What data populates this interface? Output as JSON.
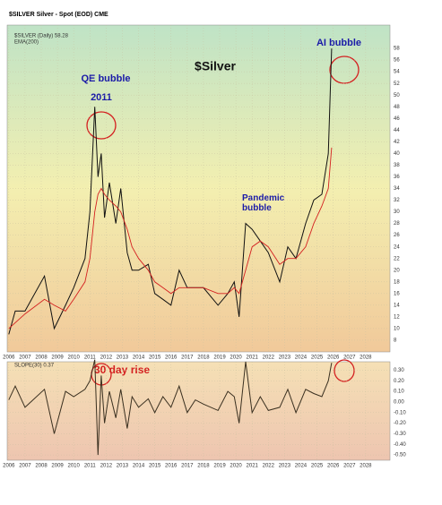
{
  "chart_data": [
    {
      "type": "line",
      "title": "$Silver",
      "subtitle": "$SILVER Silver - Spot (EOD) CME",
      "annotations": [
        "QE bubble",
        "2011",
        "Pandemic bubble",
        "AI bubble"
      ],
      "x": [
        2006.0,
        2006.4,
        2007.0,
        2008.2,
        2008.8,
        2009.5,
        2010.0,
        2010.7,
        2011.0,
        2011.3,
        2011.5,
        2011.7,
        2011.9,
        2012.2,
        2012.6,
        2012.9,
        2013.3,
        2013.6,
        2014.0,
        2014.6,
        2015.0,
        2015.5,
        2016.0,
        2016.5,
        2017.0,
        2017.5,
        2018.0,
        2018.9,
        2019.5,
        2019.9,
        2020.2,
        2020.6,
        2021.0,
        2021.5,
        2022.0,
        2022.7,
        2023.2,
        2023.7,
        2024.3,
        2024.8,
        2025.3,
        2025.7,
        2025.9
      ],
      "series": [
        {
          "name": "$SILVER (Daily) 58.28",
          "color": "#111111",
          "values": [
            9,
            13,
            13,
            19,
            10,
            14,
            17,
            22,
            30,
            48,
            36,
            40,
            29,
            35,
            28,
            34,
            23,
            20,
            20,
            21,
            16,
            15,
            14,
            20,
            17,
            17,
            17,
            14,
            16,
            18,
            12,
            28,
            27,
            25,
            23,
            18,
            24,
            22,
            28,
            32,
            33,
            40,
            58
          ]
        },
        {
          "name": "EMA(200)",
          "color": "#d42020",
          "values": [
            10,
            11,
            12.5,
            15,
            14,
            13,
            15,
            18,
            22,
            30,
            33,
            34,
            33,
            32,
            31,
            30,
            27,
            24,
            22,
            20,
            18,
            17,
            16,
            17,
            17,
            17,
            17,
            16,
            16,
            17,
            16,
            20,
            24,
            25,
            24,
            21,
            22,
            22,
            24,
            28,
            31,
            34,
            41
          ]
        }
      ],
      "xlim": [
        2005.9,
        2029.5
      ],
      "ylim": [
        6,
        62
      ],
      "xticks": [
        2006,
        2007,
        2008,
        2009,
        2010,
        2011,
        2012,
        2013,
        2014,
        2015,
        2016,
        2017,
        2018,
        2019,
        2020,
        2021,
        2022,
        2023,
        2024,
        2025,
        2026,
        2027,
        2028
      ],
      "yticks": [
        8,
        10,
        12,
        14,
        16,
        18,
        20,
        22,
        24,
        26,
        28,
        30,
        32,
        34,
        36,
        38,
        40,
        42,
        44,
        46,
        48,
        50,
        52,
        54,
        56,
        58
      ]
    },
    {
      "type": "line",
      "title": "30 day rise",
      "x": [
        2006.0,
        2006.4,
        2007.0,
        2008.2,
        2008.8,
        2009.5,
        2010.0,
        2010.7,
        2011.0,
        2011.3,
        2011.5,
        2011.7,
        2011.9,
        2012.2,
        2012.6,
        2012.9,
        2013.3,
        2013.6,
        2014.0,
        2014.6,
        2015.0,
        2015.5,
        2016.0,
        2016.5,
        2017.0,
        2017.5,
        2018.0,
        2018.9,
        2019.5,
        2019.9,
        2020.2,
        2020.6,
        2021.0,
        2021.5,
        2022.0,
        2022.7,
        2023.2,
        2023.7,
        2024.3,
        2024.8,
        2025.3,
        2025.7,
        2025.9
      ],
      "series": [
        {
          "name": "SLOPE(30) 0.37",
          "color": "#3a3020",
          "values": [
            0.02,
            0.15,
            -0.05,
            0.12,
            -0.3,
            0.1,
            0.05,
            0.12,
            0.2,
            0.4,
            -0.5,
            0.25,
            -0.2,
            0.1,
            -0.15,
            0.12,
            -0.25,
            0.05,
            -0.05,
            0.03,
            -0.1,
            0.05,
            -0.05,
            0.15,
            -0.1,
            0.02,
            -0.02,
            -0.08,
            0.1,
            0.05,
            -0.2,
            0.38,
            -0.1,
            0.05,
            -0.08,
            -0.05,
            0.12,
            -0.1,
            0.12,
            0.08,
            0.05,
            0.2,
            0.37
          ]
        }
      ],
      "xlim": [
        2005.9,
        2029.5
      ],
      "ylim": [
        -0.55,
        0.38
      ],
      "xticks": [
        2006,
        2007,
        2008,
        2009,
        2010,
        2011,
        2012,
        2013,
        2014,
        2015,
        2016,
        2017,
        2018,
        2019,
        2020,
        2021,
        2022,
        2023,
        2024,
        2025,
        2026,
        2027,
        2028
      ],
      "yticks": [
        {
          "value": 0.3,
          "label": "0.30"
        },
        {
          "value": 0.2,
          "label": "0.20"
        },
        {
          "value": 0.1,
          "label": "0.10"
        },
        {
          "value": 0,
          "label": "0.00"
        },
        {
          "value": -0.1,
          "label": "-0.10"
        },
        {
          "value": -0.2,
          "label": "-0.20"
        },
        {
          "value": -0.3,
          "label": "-0.30"
        },
        {
          "value": -0.4,
          "label": "-0.40"
        },
        {
          "value": -0.5,
          "label": "-0.50"
        }
      ]
    }
  ]
}
